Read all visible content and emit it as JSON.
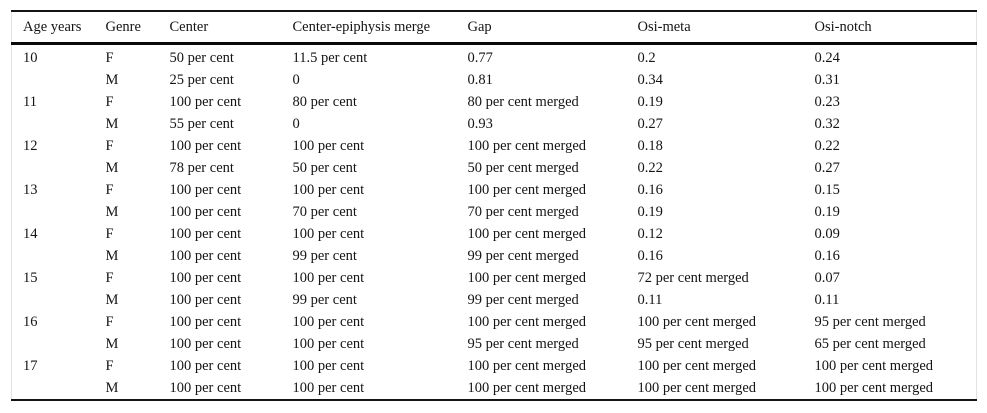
{
  "colors": {
    "text": "#141414",
    "rule_heavy": "#0a0a0a",
    "frame_light": "#e3e3e3",
    "background": "#ffffff"
  },
  "table": {
    "columns": [
      "Age years",
      "Genre",
      "Center",
      "Center-epiphysis merge",
      "Gap",
      "Osi-meta",
      "Osi-notch"
    ],
    "rows": [
      [
        "10",
        "F",
        "50 per cent",
        "11.5 per cent",
        "0.77",
        "0.2",
        "0.24"
      ],
      [
        "",
        "M",
        "25 per cent",
        "0",
        "0.81",
        "0.34",
        "0.31"
      ],
      [
        "11",
        "F",
        "100 per cent",
        "80 per cent",
        "80 per cent merged",
        "0.19",
        "0.23"
      ],
      [
        "",
        "M",
        "55 per cent",
        "0",
        "0.93",
        "0.27",
        "0.32"
      ],
      [
        "12",
        "F",
        "100 per cent",
        "100 per cent",
        "100 per cent merged",
        "0.18",
        "0.22"
      ],
      [
        "",
        "M",
        "78 per cent",
        "50 per cent",
        "50 per cent merged",
        "0.22",
        "0.27"
      ],
      [
        "13",
        "F",
        "100 per cent",
        "100 per cent",
        "100 per cent merged",
        "0.16",
        "0.15"
      ],
      [
        "",
        "M",
        "100 per cent",
        "70 per cent",
        "70 per cent merged",
        "0.19",
        "0.19"
      ],
      [
        "14",
        "F",
        "100 per cent",
        "100 per cent",
        "100 per cent merged",
        "0.12",
        "0.09"
      ],
      [
        "",
        "M",
        "100 per cent",
        "99 per cent",
        "99 per cent merged",
        "0.16",
        "0.16"
      ],
      [
        "15",
        "F",
        "100 per cent",
        "100 per cent",
        "100 per cent merged",
        "72 per cent merged",
        "0.07"
      ],
      [
        "",
        "M",
        "100 per cent",
        "99 per cent",
        "99 per cent merged",
        "0.11",
        "0.11"
      ],
      [
        "16",
        "F",
        "100 per cent",
        "100 per cent",
        "100 per cent merged",
        "100 per cent merged",
        "95 per cent merged"
      ],
      [
        "",
        "M",
        "100 per cent",
        "100 per cent",
        "95 per cent merged",
        "95 per cent merged",
        "65 per cent merged"
      ],
      [
        "17",
        "F",
        "100 per cent",
        "100 per cent",
        "100 per cent merged",
        "100 per cent merged",
        "100 per cent merged"
      ],
      [
        "",
        "M",
        "100 per cent",
        "100 per cent",
        "100 per cent merged",
        "100 per cent merged",
        "100 per cent merged"
      ]
    ]
  }
}
